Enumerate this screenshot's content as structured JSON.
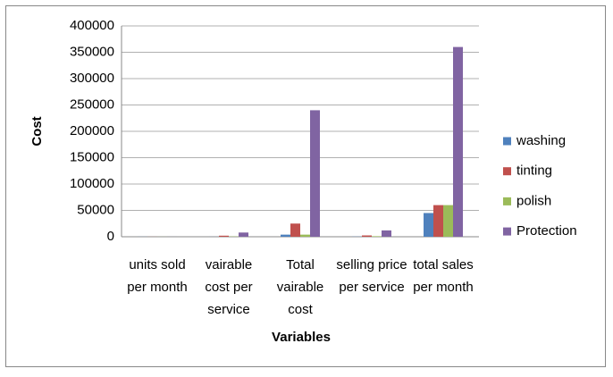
{
  "chart_data": {
    "type": "bar",
    "x_label": "Variables",
    "y_label": "Cost",
    "categories": [
      "units sold per month",
      "vairable cost per service",
      "Total vairable cost",
      "selling price per service",
      "total sales per month"
    ],
    "series": [
      {
        "name": "washing",
        "color": "#4f81bd",
        "values": [
          150,
          100,
          4000,
          300,
          45000
        ]
      },
      {
        "name": "tinting",
        "color": "#c0504d",
        "values": [
          120,
          2000,
          25000,
          2500,
          60000
        ]
      },
      {
        "name": "polish",
        "color": "#9bbb59",
        "values": [
          100,
          500,
          4000,
          1000,
          60000
        ]
      },
      {
        "name": "Protection",
        "color": "#8064a2",
        "values": [
          30,
          8000,
          240000,
          12000,
          360000
        ]
      }
    ],
    "ylim": [
      0,
      400000
    ],
    "yticks": [
      0,
      50000,
      100000,
      150000,
      200000,
      250000,
      300000,
      350000,
      400000
    ],
    "grid": true,
    "legend": "right"
  }
}
